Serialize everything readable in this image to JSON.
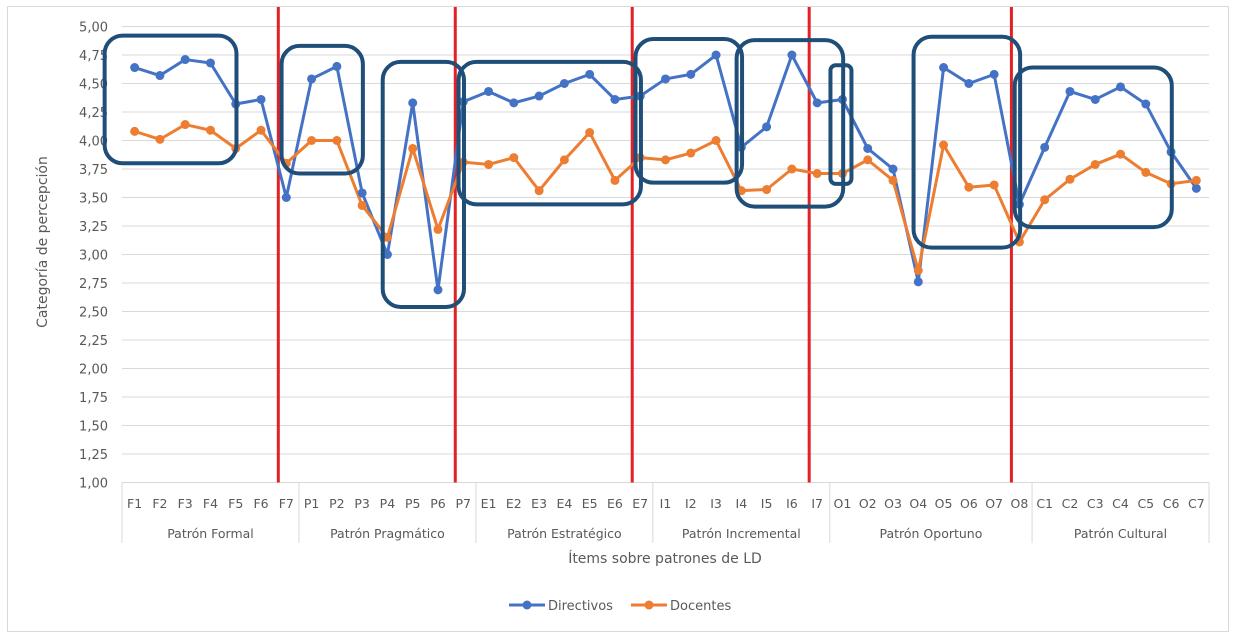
{
  "chart_data": {
    "type": "line",
    "title": "",
    "xlabel": "Ítems sobre patrones de LD",
    "ylabel": "Categoría de percepción",
    "ylim": [
      1.0,
      5.0
    ],
    "ytick_step": 0.25,
    "yticks": [
      "1,00",
      "1,25",
      "1,50",
      "1,75",
      "2,00",
      "2,25",
      "2,50",
      "2,75",
      "3,00",
      "3,25",
      "3,50",
      "3,75",
      "4,00",
      "4,25",
      "4,50",
      "4,75",
      "5,00"
    ],
    "grid": true,
    "legend_position": "bottom",
    "groups": [
      {
        "label": "Patrón Formal",
        "items": [
          "F1",
          "F2",
          "F3",
          "F4",
          "F5",
          "F6",
          "F7"
        ]
      },
      {
        "label": "Patrón Pragmático",
        "items": [
          "P1",
          "P2",
          "P3",
          "P4",
          "P5",
          "P6",
          "P7"
        ]
      },
      {
        "label": "Patrón Estratégico",
        "items": [
          "E1",
          "E2",
          "E3",
          "E4",
          "E5",
          "E6",
          "E7"
        ]
      },
      {
        "label": "Patrón Incremental",
        "items": [
          "I1",
          "I2",
          "I3",
          "I4",
          "I5",
          "I6",
          "I7"
        ]
      },
      {
        "label": "Patrón Oportuno",
        "items": [
          "O1",
          "O2",
          "O3",
          "O4",
          "O5",
          "O6",
          "O7",
          "O8"
        ]
      },
      {
        "label": "Patrón Cultural",
        "items": [
          "C1",
          "C2",
          "C3",
          "C4",
          "C5",
          "C6",
          "C7"
        ]
      }
    ],
    "series": [
      {
        "name": "Directivos",
        "color": "#4472c4",
        "values": [
          4.64,
          4.57,
          4.71,
          4.68,
          4.32,
          4.36,
          3.5,
          4.54,
          4.65,
          3.54,
          3.0,
          4.33,
          2.69,
          4.34,
          4.43,
          4.33,
          4.39,
          4.5,
          4.58,
          4.36,
          4.39,
          4.54,
          4.58,
          4.75,
          3.94,
          4.12,
          4.75,
          4.33,
          4.36,
          3.93,
          3.75,
          2.76,
          4.64,
          4.5,
          4.58,
          3.44,
          3.94,
          4.43,
          4.36,
          4.47,
          4.32,
          3.9,
          3.58
        ]
      },
      {
        "name": "Docentes",
        "color": "#ed7d31",
        "values": [
          4.08,
          4.01,
          4.14,
          4.09,
          3.93,
          4.09,
          3.8,
          4.0,
          4.0,
          3.43,
          3.15,
          3.93,
          3.22,
          3.81,
          3.79,
          3.85,
          3.56,
          3.83,
          4.07,
          3.65,
          3.85,
          3.83,
          3.89,
          4.0,
          3.56,
          3.57,
          3.75,
          3.71,
          3.71,
          3.83,
          3.65,
          2.86,
          3.96,
          3.59,
          3.61,
          3.11,
          3.48,
          3.66,
          3.79,
          3.88,
          3.72,
          3.62,
          3.65
        ]
      }
    ],
    "annotations": {
      "separator_color": "#e32024",
      "separators_before_items": [
        "F7",
        "P7",
        "E7",
        "I7",
        "O8"
      ],
      "box_color": "#1f4e79",
      "highlight_boxes": [
        {
          "items": [
            "F1",
            "F4"
          ],
          "range": [
            3.8,
            4.92
          ]
        },
        {
          "items": [
            "P1",
            "P2"
          ],
          "range": [
            3.71,
            4.83
          ]
        },
        {
          "items": [
            "P5",
            "P6"
          ],
          "range": [
            2.54,
            4.69
          ]
        },
        {
          "items": [
            "E1",
            "E6"
          ],
          "range": [
            3.44,
            4.69
          ]
        },
        {
          "items": [
            "I1",
            "I3"
          ],
          "range": [
            3.63,
            4.89
          ]
        },
        {
          "items": [
            "I5",
            "I7"
          ],
          "range": [
            3.42,
            4.88
          ]
        },
        {
          "items": [
            "O1",
            "O1"
          ],
          "range": [
            3.62,
            4.66
          ]
        },
        {
          "items": [
            "O5",
            "O7"
          ],
          "range": [
            3.06,
            4.91
          ]
        },
        {
          "items": [
            "C1",
            "C5"
          ],
          "range": [
            3.24,
            4.64
          ]
        }
      ]
    }
  }
}
